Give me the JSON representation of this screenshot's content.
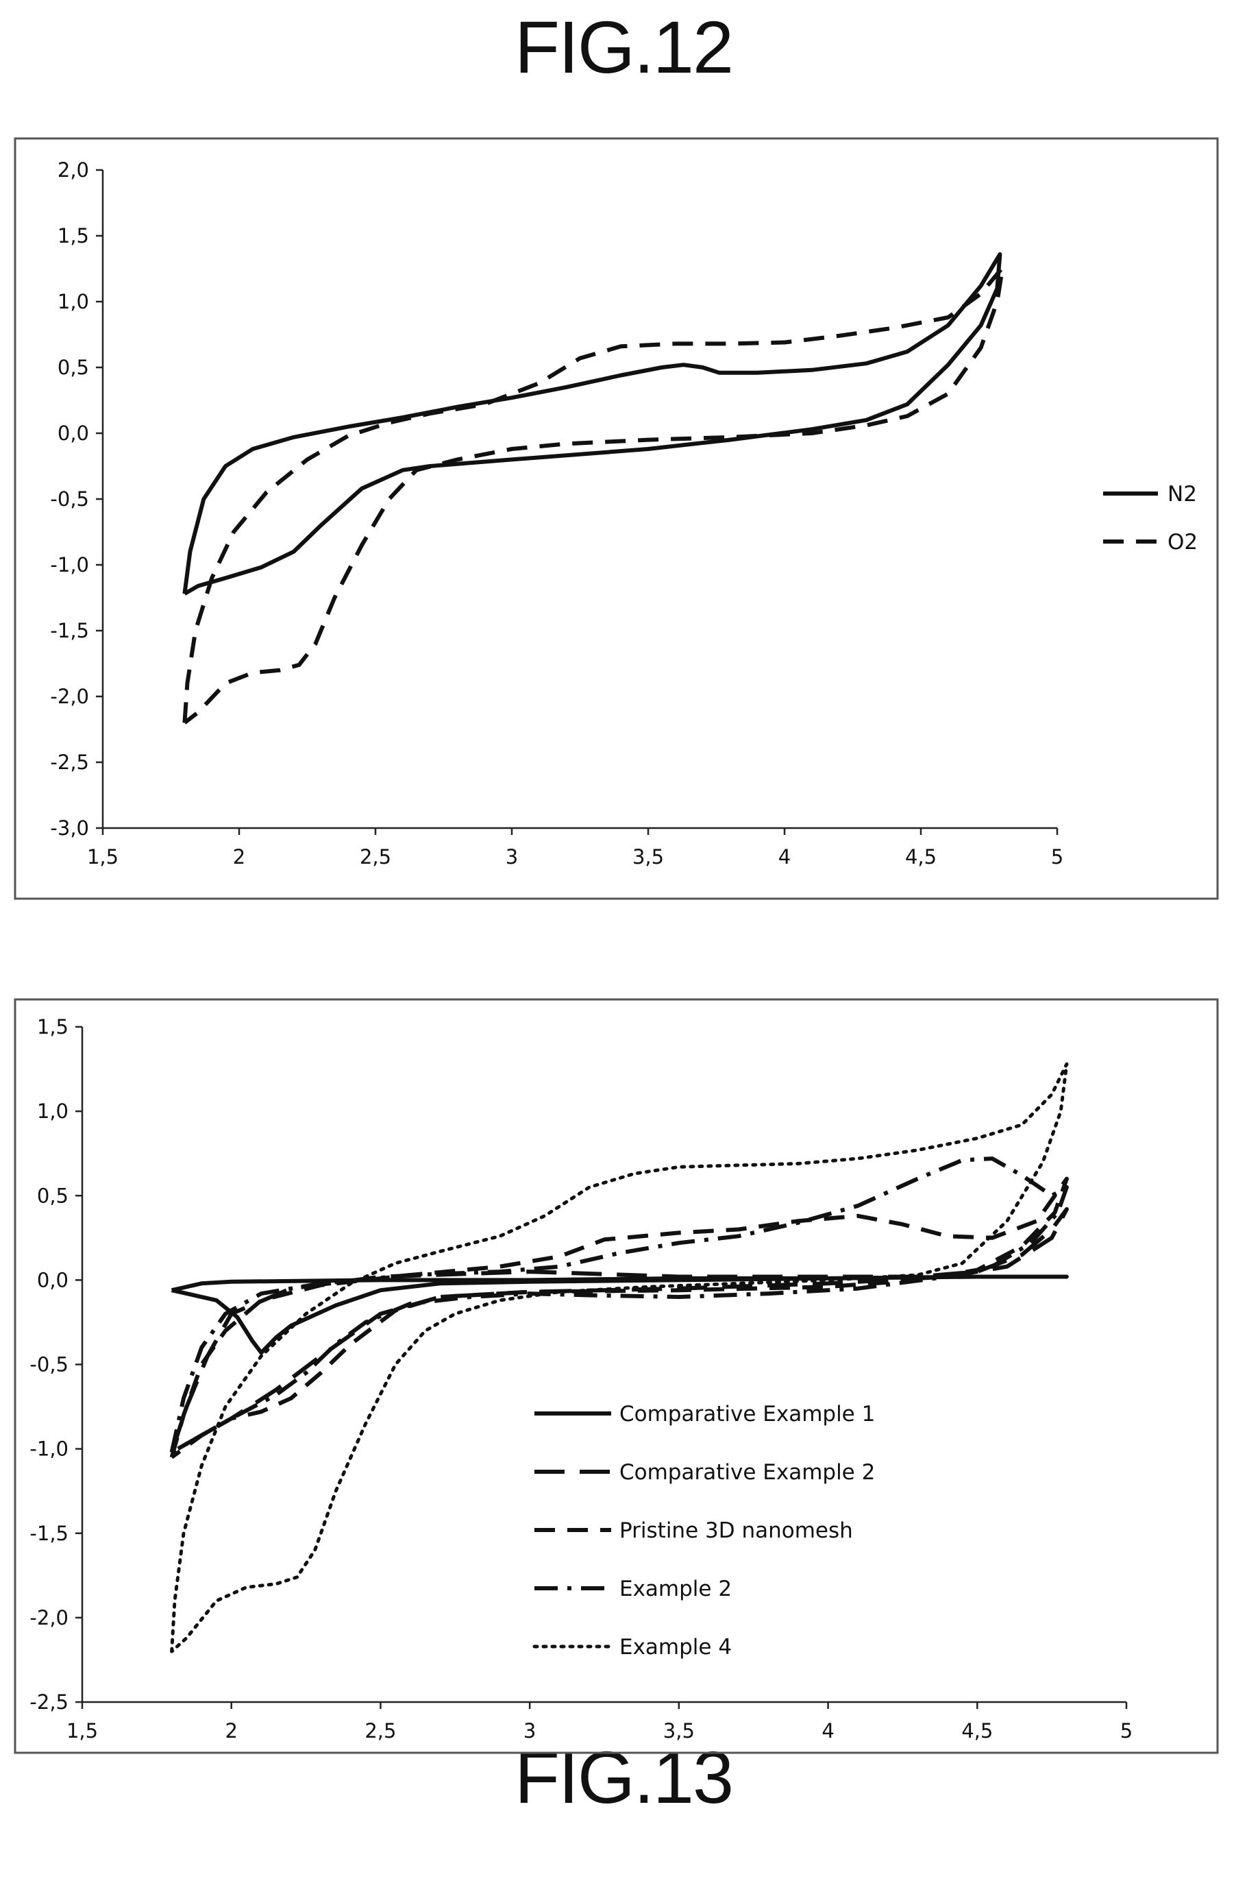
{
  "figures": {
    "fig12_title": "FIG.12",
    "fig13_title": "FIG.13"
  },
  "chart_data": [
    {
      "id": "fig12",
      "type": "line",
      "title": "FIG.12",
      "xlim": [
        1.5,
        5
      ],
      "ylim": [
        -3.0,
        2.0
      ],
      "x_ticks": [
        "1,5",
        "2",
        "2,5",
        "3",
        "3,5",
        "4",
        "4,5",
        "5"
      ],
      "x_tick_values": [
        1.5,
        2,
        2.5,
        3,
        3.5,
        4,
        4.5,
        5
      ],
      "y_ticks": [
        "2,0",
        "1,5",
        "1,0",
        "0,5",
        "0,0",
        "-0,5",
        "-1,0",
        "-1,5",
        "-2,0",
        "-2,5",
        "-3,0"
      ],
      "y_tick_values": [
        2.0,
        1.5,
        1.0,
        0.5,
        0.0,
        -0.5,
        -1.0,
        -1.5,
        -2.0,
        -2.5,
        -3.0
      ],
      "grid": false,
      "legend_position": "right",
      "series": [
        {
          "name": "N2",
          "style": "solid",
          "points": [
            [
              1.8,
              -1.22
            ],
            [
              1.82,
              -0.9
            ],
            [
              1.87,
              -0.5
            ],
            [
              1.95,
              -0.25
            ],
            [
              2.05,
              -0.12
            ],
            [
              2.2,
              -0.03
            ],
            [
              2.4,
              0.05
            ],
            [
              2.6,
              0.12
            ],
            [
              2.8,
              0.2
            ],
            [
              3.0,
              0.27
            ],
            [
              3.2,
              0.35
            ],
            [
              3.4,
              0.44
            ],
            [
              3.55,
              0.5
            ],
            [
              3.63,
              0.52
            ],
            [
              3.7,
              0.5
            ],
            [
              3.76,
              0.46
            ],
            [
              3.9,
              0.46
            ],
            [
              4.1,
              0.48
            ],
            [
              4.3,
              0.53
            ],
            [
              4.45,
              0.62
            ],
            [
              4.6,
              0.82
            ],
            [
              4.72,
              1.12
            ],
            [
              4.79,
              1.36
            ],
            [
              4.78,
              1.1
            ],
            [
              4.72,
              0.82
            ],
            [
              4.6,
              0.52
            ],
            [
              4.45,
              0.22
            ],
            [
              4.3,
              0.1
            ],
            [
              4.1,
              0.03
            ],
            [
              3.8,
              -0.05
            ],
            [
              3.5,
              -0.12
            ],
            [
              3.0,
              -0.2
            ],
            [
              2.7,
              -0.25
            ],
            [
              2.6,
              -0.28
            ],
            [
              2.45,
              -0.42
            ],
            [
              2.3,
              -0.7
            ],
            [
              2.2,
              -0.9
            ],
            [
              2.08,
              -1.02
            ],
            [
              1.95,
              -1.1
            ],
            [
              1.85,
              -1.16
            ],
            [
              1.8,
              -1.22
            ]
          ]
        },
        {
          "name": "O2",
          "style": "dashed",
          "points": [
            [
              1.8,
              -2.2
            ],
            [
              1.81,
              -1.9
            ],
            [
              1.84,
              -1.5
            ],
            [
              1.9,
              -1.1
            ],
            [
              1.98,
              -0.75
            ],
            [
              2.1,
              -0.45
            ],
            [
              2.25,
              -0.2
            ],
            [
              2.4,
              -0.02
            ],
            [
              2.55,
              0.08
            ],
            [
              2.7,
              0.15
            ],
            [
              2.9,
              0.22
            ],
            [
              3.1,
              0.38
            ],
            [
              3.25,
              0.57
            ],
            [
              3.4,
              0.66
            ],
            [
              3.6,
              0.68
            ],
            [
              3.8,
              0.68
            ],
            [
              4.0,
              0.69
            ],
            [
              4.2,
              0.74
            ],
            [
              4.4,
              0.8
            ],
            [
              4.6,
              0.88
            ],
            [
              4.72,
              1.06
            ],
            [
              4.8,
              1.26
            ],
            [
              4.78,
              1.0
            ],
            [
              4.72,
              0.65
            ],
            [
              4.6,
              0.3
            ],
            [
              4.45,
              0.13
            ],
            [
              4.3,
              0.06
            ],
            [
              4.1,
              0.0
            ],
            [
              3.8,
              -0.03
            ],
            [
              3.5,
              -0.05
            ],
            [
              3.2,
              -0.08
            ],
            [
              3.0,
              -0.12
            ],
            [
              2.8,
              -0.2
            ],
            [
              2.65,
              -0.28
            ],
            [
              2.55,
              -0.5
            ],
            [
              2.45,
              -0.85
            ],
            [
              2.35,
              -1.25
            ],
            [
              2.28,
              -1.6
            ],
            [
              2.22,
              -1.76
            ],
            [
              2.15,
              -1.8
            ],
            [
              2.05,
              -1.82
            ],
            [
              1.95,
              -1.9
            ],
            [
              1.85,
              -2.12
            ],
            [
              1.8,
              -2.2
            ]
          ]
        }
      ]
    },
    {
      "id": "fig13",
      "type": "line",
      "title": "FIG.13",
      "xlim": [
        1.5,
        5
      ],
      "ylim": [
        -2.5,
        1.5
      ],
      "x_ticks": [
        "1,5",
        "2",
        "2,5",
        "3",
        "3,5",
        "4",
        "4,5",
        "5"
      ],
      "x_tick_values": [
        1.5,
        2,
        2.5,
        3,
        3.5,
        4,
        4.5,
        5
      ],
      "y_ticks": [
        "1,5",
        "1,0",
        "0,5",
        "0,0",
        "-0,5",
        "-1,0",
        "-1,5",
        "-2,0",
        "-2,5"
      ],
      "y_tick_values": [
        1.5,
        1.0,
        0.5,
        0.0,
        -0.5,
        -1.0,
        -1.5,
        -2.0,
        -2.5
      ],
      "grid": false,
      "legend_position": "bottom-center",
      "series": [
        {
          "name": "Comparative Example 1",
          "style": "solid",
          "points": [
            [
              1.8,
              -0.06
            ],
            [
              1.9,
              -0.02
            ],
            [
              2.0,
              -0.01
            ],
            [
              2.5,
              0.0
            ],
            [
              3.0,
              0.0
            ],
            [
              3.5,
              0.01
            ],
            [
              4.0,
              0.01
            ],
            [
              4.5,
              0.02
            ],
            [
              4.8,
              0.02
            ],
            [
              4.5,
              0.02
            ],
            [
              4.0,
              0.01
            ],
            [
              3.5,
              0.0
            ],
            [
              3.0,
              -0.01
            ],
            [
              2.7,
              -0.02
            ],
            [
              2.5,
              -0.06
            ],
            [
              2.35,
              -0.15
            ],
            [
              2.2,
              -0.27
            ],
            [
              2.15,
              -0.34
            ],
            [
              2.1,
              -0.43
            ],
            [
              2.07,
              -0.36
            ],
            [
              2.02,
              -0.22
            ],
            [
              1.95,
              -0.12
            ],
            [
              1.85,
              -0.08
            ],
            [
              1.8,
              -0.06
            ]
          ]
        },
        {
          "name": "Comparative Example 2",
          "style": "long-dash",
          "points": [
            [
              1.8,
              -1.02
            ],
            [
              1.85,
              -0.75
            ],
            [
              1.92,
              -0.45
            ],
            [
              2.0,
              -0.2
            ],
            [
              2.2,
              -0.05
            ],
            [
              2.5,
              0.02
            ],
            [
              3.0,
              0.05
            ],
            [
              3.5,
              0.02
            ],
            [
              4.0,
              0.02
            ],
            [
              4.3,
              0.02
            ],
            [
              4.5,
              0.05
            ],
            [
              4.65,
              0.15
            ],
            [
              4.75,
              0.3
            ],
            [
              4.8,
              0.42
            ],
            [
              4.75,
              0.25
            ],
            [
              4.6,
              0.08
            ],
            [
              4.4,
              0.02
            ],
            [
              4.0,
              -0.02
            ],
            [
              3.5,
              -0.05
            ],
            [
              3.0,
              -0.07
            ],
            [
              2.7,
              -0.1
            ],
            [
              2.5,
              -0.2
            ],
            [
              2.3,
              -0.45
            ],
            [
              2.15,
              -0.65
            ],
            [
              2.0,
              -0.82
            ],
            [
              1.9,
              -0.92
            ],
            [
              1.8,
              -1.02
            ]
          ]
        },
        {
          "name": "Pristine 3D nanomesh",
          "style": "dashed",
          "points": [
            [
              1.8,
              -1.05
            ],
            [
              1.84,
              -0.8
            ],
            [
              1.9,
              -0.5
            ],
            [
              1.98,
              -0.3
            ],
            [
              2.1,
              -0.12
            ],
            [
              2.3,
              -0.03
            ],
            [
              2.6,
              0.03
            ],
            [
              2.9,
              0.08
            ],
            [
              3.1,
              0.14
            ],
            [
              3.25,
              0.24
            ],
            [
              3.5,
              0.28
            ],
            [
              3.7,
              0.3
            ],
            [
              3.9,
              0.35
            ],
            [
              4.1,
              0.38
            ],
            [
              4.25,
              0.33
            ],
            [
              4.4,
              0.26
            ],
            [
              4.55,
              0.25
            ],
            [
              4.7,
              0.35
            ],
            [
              4.8,
              0.6
            ],
            [
              4.76,
              0.4
            ],
            [
              4.65,
              0.2
            ],
            [
              4.5,
              0.06
            ],
            [
              4.3,
              0.0
            ],
            [
              4.0,
              -0.04
            ],
            [
              3.5,
              -0.06
            ],
            [
              3.0,
              -0.07
            ],
            [
              2.7,
              -0.1
            ],
            [
              2.55,
              -0.18
            ],
            [
              2.4,
              -0.38
            ],
            [
              2.3,
              -0.55
            ],
            [
              2.2,
              -0.7
            ],
            [
              2.1,
              -0.78
            ],
            [
              2.0,
              -0.82
            ],
            [
              1.9,
              -0.92
            ],
            [
              1.8,
              -1.05
            ]
          ]
        },
        {
          "name": "Example 2",
          "style": "dash-dot",
          "points": [
            [
              1.8,
              -1.02
            ],
            [
              1.84,
              -0.7
            ],
            [
              1.9,
              -0.4
            ],
            [
              1.98,
              -0.2
            ],
            [
              2.1,
              -0.08
            ],
            [
              2.3,
              -0.02
            ],
            [
              2.6,
              0.03
            ],
            [
              2.9,
              0.05
            ],
            [
              3.1,
              0.08
            ],
            [
              3.3,
              0.16
            ],
            [
              3.5,
              0.22
            ],
            [
              3.7,
              0.26
            ],
            [
              3.9,
              0.34
            ],
            [
              4.1,
              0.44
            ],
            [
              4.3,
              0.6
            ],
            [
              4.45,
              0.71
            ],
            [
              4.55,
              0.72
            ],
            [
              4.65,
              0.62
            ],
            [
              4.75,
              0.5
            ],
            [
              4.8,
              0.55
            ],
            [
              4.77,
              0.4
            ],
            [
              4.68,
              0.22
            ],
            [
              4.55,
              0.08
            ],
            [
              4.4,
              0.02
            ],
            [
              4.1,
              -0.05
            ],
            [
              3.8,
              -0.08
            ],
            [
              3.5,
              -0.1
            ],
            [
              3.2,
              -0.09
            ],
            [
              3.0,
              -0.08
            ],
            [
              2.8,
              -0.1
            ],
            [
              2.6,
              -0.14
            ],
            [
              2.45,
              -0.25
            ],
            [
              2.35,
              -0.38
            ],
            [
              2.25,
              -0.55
            ],
            [
              2.15,
              -0.68
            ],
            [
              2.0,
              -0.82
            ],
            [
              1.9,
              -0.92
            ],
            [
              1.8,
              -1.02
            ]
          ]
        },
        {
          "name": "Example 4",
          "style": "dotted",
          "points": [
            [
              1.8,
              -2.2
            ],
            [
              1.81,
              -1.9
            ],
            [
              1.84,
              -1.5
            ],
            [
              1.9,
              -1.1
            ],
            [
              1.98,
              -0.75
            ],
            [
              2.1,
              -0.45
            ],
            [
              2.25,
              -0.2
            ],
            [
              2.4,
              -0.02
            ],
            [
              2.55,
              0.1
            ],
            [
              2.7,
              0.17
            ],
            [
              2.9,
              0.26
            ],
            [
              3.05,
              0.38
            ],
            [
              3.2,
              0.55
            ],
            [
              3.35,
              0.63
            ],
            [
              3.5,
              0.67
            ],
            [
              3.7,
              0.68
            ],
            [
              3.9,
              0.69
            ],
            [
              4.1,
              0.72
            ],
            [
              4.3,
              0.77
            ],
            [
              4.5,
              0.84
            ],
            [
              4.65,
              0.92
            ],
            [
              4.75,
              1.1
            ],
            [
              4.8,
              1.28
            ],
            [
              4.78,
              1.0
            ],
            [
              4.72,
              0.7
            ],
            [
              4.6,
              0.35
            ],
            [
              4.45,
              0.1
            ],
            [
              4.3,
              0.03
            ],
            [
              4.0,
              0.0
            ],
            [
              3.7,
              -0.02
            ],
            [
              3.4,
              -0.04
            ],
            [
              3.1,
              -0.07
            ],
            [
              2.9,
              -0.12
            ],
            [
              2.75,
              -0.2
            ],
            [
              2.65,
              -0.3
            ],
            [
              2.55,
              -0.5
            ],
            [
              2.45,
              -0.85
            ],
            [
              2.35,
              -1.25
            ],
            [
              2.28,
              -1.6
            ],
            [
              2.22,
              -1.76
            ],
            [
              2.15,
              -1.8
            ],
            [
              2.05,
              -1.82
            ],
            [
              1.95,
              -1.9
            ],
            [
              1.85,
              -2.12
            ],
            [
              1.8,
              -2.2
            ]
          ]
        }
      ]
    }
  ]
}
